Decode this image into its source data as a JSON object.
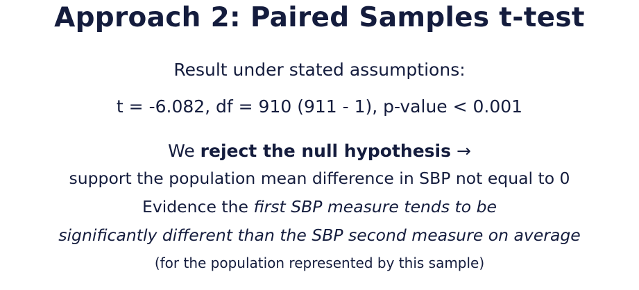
{
  "title": "Approach 2: Paired Samples t-test",
  "result": {
    "heading": "Result under stated assumptions:",
    "stats": "t = -6.082, df = 910 (911 - 1), p-value < 0.001"
  },
  "conclusion": {
    "we": "We ",
    "reject": "reject the null hypothesis",
    "arrow": " →",
    "support": "support the population mean difference in SBP not equal to 0",
    "evidence_prefix": "Evidence the ",
    "evidence_italic_1": "first SBP measure tends to be",
    "evidence_italic_2": "significantly different than the SBP second measure on average",
    "population_note": "(for the population represented by this sample)"
  }
}
